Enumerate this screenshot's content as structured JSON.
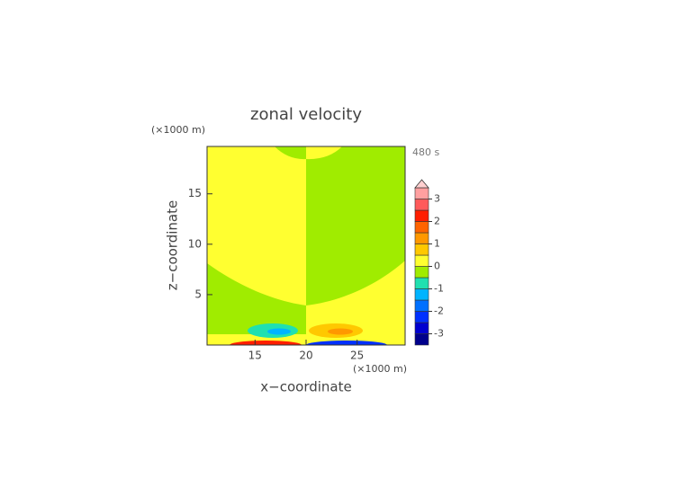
{
  "chart_data": {
    "type": "contour",
    "title": "zonal velocity",
    "x_label": "x−coordinate",
    "y_label": "z−coordinate",
    "x_unit": "(×1000 m)",
    "y_unit": "(×1000 m)",
    "annotation": "480 s",
    "xlim": [
      10.3,
      29.7
    ],
    "ylim": [
      0,
      19.7
    ],
    "xticks": [
      15,
      20,
      25
    ],
    "yticks": [
      5,
      10,
      15
    ],
    "regions": [
      0.25,
      -0.25,
      -0.25,
      0.25,
      -0.25,
      0.25,
      -0.75,
      -1.25,
      0.75,
      1.25,
      2.25,
      -2.25
    ],
    "colorbar": {
      "levels": [
        -3.5,
        -3,
        -2.5,
        -2,
        -1.5,
        -1,
        -0.5,
        0,
        0.5,
        1,
        1.5,
        2,
        2.5,
        3,
        3.5
      ],
      "colors": [
        "#00008c",
        "#0000d0",
        "#0030ff",
        "#0070ff",
        "#00b4ff",
        "#20e0b0",
        "#a0ec00",
        "#ffff30",
        "#ffc800",
        "#ff9800",
        "#ff6400",
        "#ff1e00",
        "#ff5a5a",
        "#ffa0a0"
      ],
      "over_color": "#ffd0d0",
      "ticks": [
        -3,
        -2,
        -1,
        0,
        1,
        2,
        3
      ]
    }
  }
}
